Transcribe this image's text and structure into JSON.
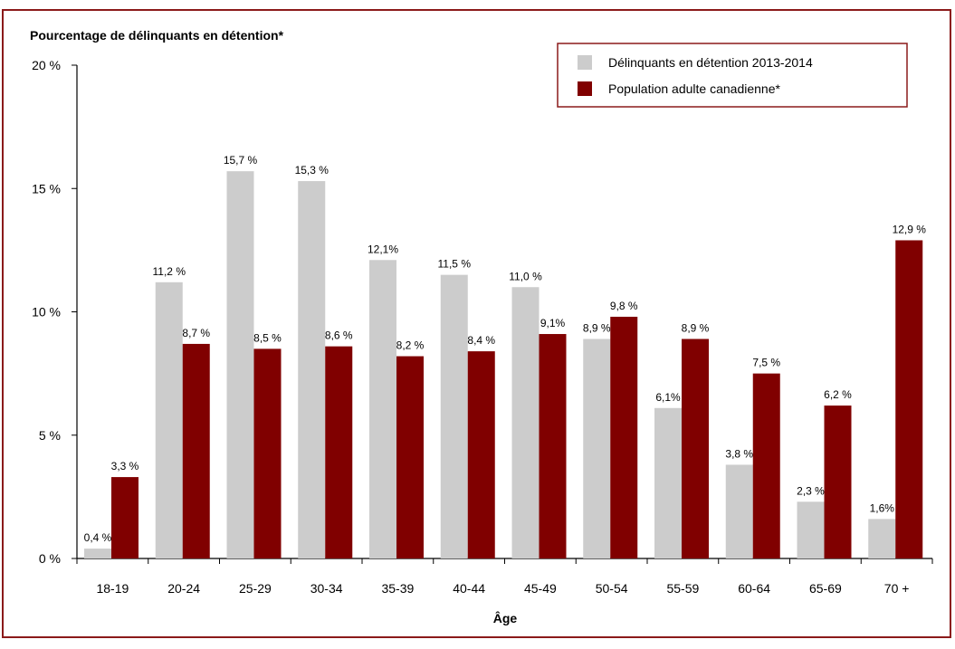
{
  "chart_data": {
    "type": "bar",
    "title": "",
    "ylabel": "Pourcentage de délinquants en détention*",
    "xlabel": "Âge",
    "ylim": [
      0,
      20
    ],
    "yticks": [
      "0 %",
      "5 %",
      "10 %",
      "15 %",
      "20 %"
    ],
    "categories": [
      "18-19",
      "20-24",
      "25-29",
      "30-34",
      "35-39",
      "40-44",
      "45-49",
      "50-54",
      "55-59",
      "60-64",
      "65-69",
      "70 +"
    ],
    "series": [
      {
        "name": "Délinquants en détention 2013-2014",
        "color": "#cccccc",
        "values": [
          0.4,
          11.2,
          15.7,
          15.3,
          12.1,
          11.5,
          11.0,
          8.9,
          6.1,
          3.8,
          2.3,
          1.6
        ],
        "labels": [
          "0,4 %",
          "11,2 %",
          "15,7 %",
          "15,3 %",
          "12,1%",
          "11,5 %",
          "11,0 %",
          "8,9 %",
          "6,1%",
          "3,8 %",
          "2,3 %",
          "1,6%"
        ]
      },
      {
        "name": "Population adulte canadienne*",
        "color": "#800000",
        "values": [
          3.3,
          8.7,
          8.5,
          8.6,
          8.2,
          8.4,
          9.1,
          9.8,
          8.9,
          7.5,
          6.2,
          12.9
        ],
        "labels": [
          "3,3 %",
          "8,7 %",
          "8,5 %",
          "8,6 %",
          "8,2 %",
          "8,4 %",
          "9,1%",
          "9,8 %",
          "8,9 %",
          "7,5 %",
          "6,2 %",
          "12,9 %"
        ]
      }
    ],
    "legend_position": "top-right",
    "grid": false,
    "frame_color": "#8b1a1a"
  }
}
